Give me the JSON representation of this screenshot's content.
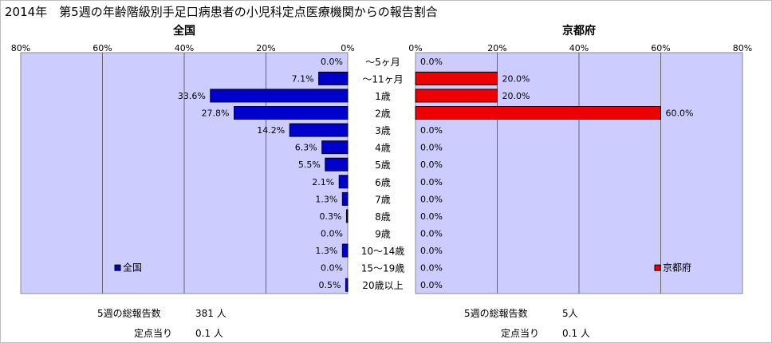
{
  "page": {
    "title": "2014年　第5週の年齢階級別手足口病患者の小児科定点医療機関からの報告割合"
  },
  "chart_data": [
    {
      "type": "bar",
      "orientation": "horizontal",
      "direction": "right-to-left",
      "title": "全国",
      "legend": "全国",
      "legend_position": "bottom-left",
      "color": "#0000cc",
      "xlim": [
        0,
        80
      ],
      "x_ticks": [
        "80%",
        "60%",
        "40%",
        "20%",
        "0%"
      ],
      "categories": [
        "～5ヶ月",
        "～11ヶ月",
        "1歳",
        "2歳",
        "3歳",
        "4歳",
        "5歳",
        "6歳",
        "7歳",
        "8歳",
        "9歳",
        "10～14歳",
        "15～19歳",
        "20歳以上"
      ],
      "values": [
        0.0,
        7.1,
        33.6,
        27.8,
        14.2,
        6.3,
        5.5,
        2.1,
        1.3,
        0.3,
        0.0,
        1.3,
        0.0,
        0.5
      ],
      "value_labels": [
        "0.0%",
        "7.1%",
        "33.6%",
        "27.8%",
        "14.2%",
        "6.3%",
        "5.5%",
        "2.1%",
        "1.3%",
        "0.3%",
        "0.0%",
        "1.3%",
        "0.0%",
        "0.5%"
      ],
      "grid": true
    },
    {
      "type": "bar",
      "orientation": "horizontal",
      "direction": "left-to-right",
      "title": "京都府",
      "legend": "京都府",
      "legend_position": "bottom-right",
      "color": "#ee0000",
      "xlim": [
        0,
        80
      ],
      "x_ticks": [
        "0%",
        "20%",
        "40%",
        "60%",
        "80%"
      ],
      "categories": [
        "～5ヶ月",
        "～11ヶ月",
        "1歳",
        "2歳",
        "3歳",
        "4歳",
        "5歳",
        "6歳",
        "7歳",
        "8歳",
        "9歳",
        "10～14歳",
        "15～19歳",
        "20歳以上"
      ],
      "values": [
        0.0,
        20.0,
        20.0,
        60.0,
        0.0,
        0.0,
        0.0,
        0.0,
        0.0,
        0.0,
        0.0,
        0.0,
        0.0,
        0.0
      ],
      "value_labels": [
        "0.0%",
        "20.0%",
        "20.0%",
        "60.0%",
        "0.0%",
        "0.0%",
        "0.0%",
        "0.0%",
        "0.0%",
        "0.0%",
        "0.0%",
        "0.0%",
        "0.0%",
        "0.0%"
      ],
      "grid": true
    }
  ],
  "summary": {
    "national": {
      "total_label": "5週の総報告数",
      "total_value": "381 人",
      "per_site_label": "定点当り",
      "per_site_value": "0.1 人"
    },
    "kyoto": {
      "total_label": "5週の総報告数",
      "total_value": "5人",
      "per_site_label": "定点当り",
      "per_site_value": "0.1 人"
    }
  }
}
